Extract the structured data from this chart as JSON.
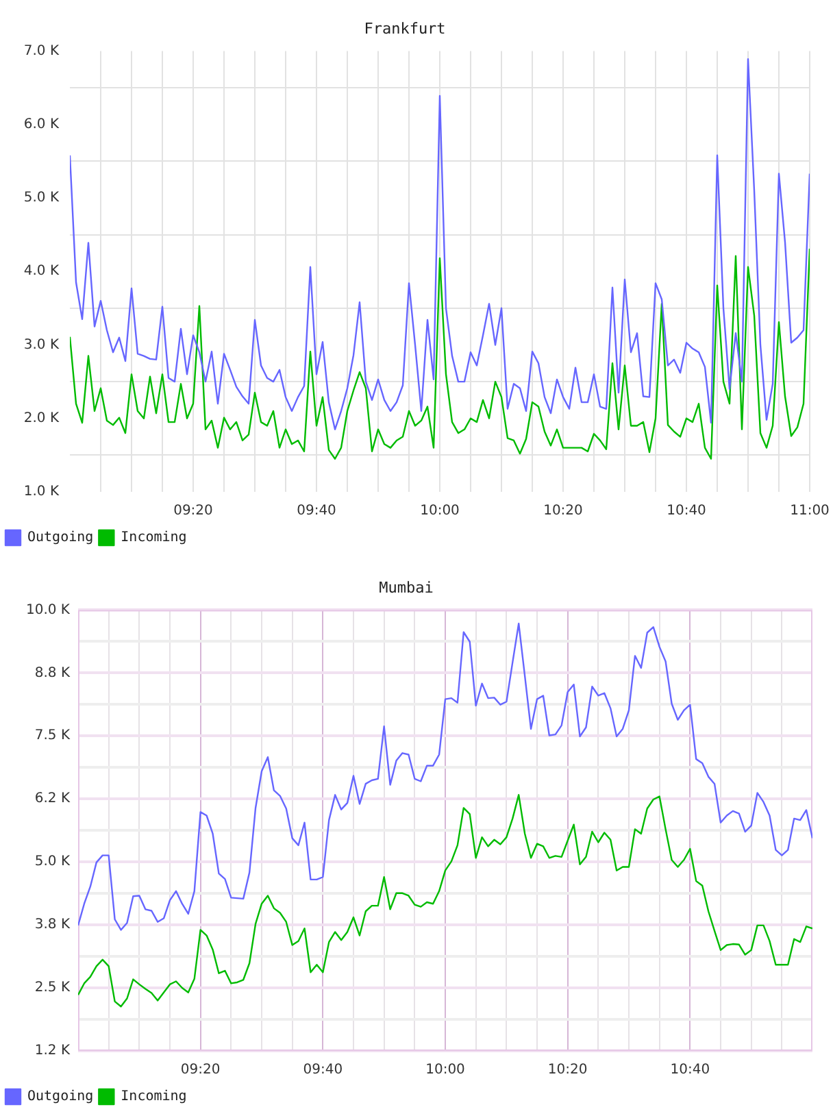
{
  "chart_data": [
    {
      "type": "line",
      "title": "Frankfurt",
      "x": [
        9,
        9.0167,
        9.0333,
        9.05,
        9.0667,
        9.0833,
        9.1,
        9.1167,
        9.1333,
        9.15,
        9.1667,
        9.1833,
        9.2,
        9.2167,
        9.2333,
        9.25,
        9.2667,
        9.2833,
        9.3,
        9.3167,
        9.3333,
        9.35,
        9.3667,
        9.3833,
        9.4,
        9.4167,
        9.4333,
        9.45,
        9.4667,
        9.4833,
        9.5,
        9.5167,
        9.5333,
        9.55,
        9.5667,
        9.5833,
        9.6,
        9.6167,
        9.6333,
        9.65,
        9.6667,
        9.6833,
        9.7,
        9.7167,
        9.7333,
        9.75,
        9.7667,
        9.7833,
        9.8,
        9.8167,
        9.8333,
        9.85,
        9.8667,
        9.8833,
        9.9,
        9.9167,
        9.9333,
        9.95,
        9.9667,
        9.9833,
        10,
        10.0167,
        10.0333,
        10.05,
        10.0667,
        10.0833,
        10.1,
        10.1167,
        10.1333,
        10.15,
        10.1667,
        10.1833,
        10.2,
        10.2167,
        10.2333,
        10.25,
        10.2667,
        10.2833,
        10.3,
        10.3167,
        10.3333,
        10.35,
        10.3667,
        10.3833,
        10.4,
        10.4167,
        10.4333,
        10.45,
        10.4667,
        10.4833,
        10.5,
        10.5167,
        10.5333,
        10.55,
        10.5667,
        10.5833,
        10.6,
        10.6167,
        10.6333,
        10.65,
        10.6667,
        10.6833,
        10.7,
        10.7167,
        10.7333,
        10.75,
        10.7667,
        10.7833,
        10.8,
        10.8167,
        10.8333,
        10.85,
        10.8667,
        10.8833,
        10.9,
        10.9167,
        10.9333,
        10.95,
        10.9667,
        10.9833,
        11
      ],
      "series": [
        {
          "name": "Outgoing",
          "color": "#6666ff",
          "values": [
            5580,
            3850,
            3350,
            4390,
            3250,
            3600,
            3200,
            2900,
            3100,
            2780,
            3770,
            2880,
            2850,
            2810,
            2800,
            3520,
            2550,
            2500,
            3220,
            2600,
            3130,
            2900,
            2500,
            2910,
            2200,
            2880,
            2660,
            2430,
            2300,
            2200,
            3340,
            2720,
            2550,
            2500,
            2660,
            2290,
            2100,
            2290,
            2440,
            4060,
            2600,
            3040,
            2220,
            1850,
            2100,
            2410,
            2860,
            3580,
            2500,
            2250,
            2530,
            2250,
            2100,
            2220,
            2450,
            3840,
            3000,
            2100,
            3340,
            2530,
            6390,
            3500,
            2850,
            2500,
            2500,
            2900,
            2720,
            3130,
            3560,
            3000,
            3500,
            2130,
            2470,
            2410,
            2100,
            2910,
            2750,
            2290,
            2070,
            2530,
            2290,
            2130,
            2690,
            2220,
            2220,
            2600,
            2160,
            2130,
            3780,
            2350,
            3890,
            2900,
            3160,
            2300,
            2290,
            3840,
            3620,
            2720,
            2800,
            2620,
            3030,
            2950,
            2900,
            2700,
            1940,
            5580,
            3500,
            2400,
            3160,
            2500,
            6890,
            5100,
            3000,
            1980,
            2470,
            5330,
            4400,
            3030,
            3100,
            3200,
            5330
          ]
        },
        {
          "name": "Incoming",
          "color": "#00bb00",
          "values": [
            3110,
            2200,
            1940,
            2850,
            2100,
            2410,
            1970,
            1910,
            2010,
            1800,
            2600,
            2100,
            2000,
            2570,
            2070,
            2600,
            1950,
            1950,
            2470,
            2000,
            2200,
            3530,
            1850,
            1970,
            1600,
            2010,
            1850,
            1950,
            1700,
            1780,
            2350,
            1950,
            1900,
            2100,
            1600,
            1850,
            1650,
            1700,
            1550,
            2910,
            1900,
            2290,
            1570,
            1450,
            1600,
            2100,
            2380,
            2630,
            2410,
            1550,
            1850,
            1650,
            1600,
            1700,
            1750,
            2100,
            1900,
            1970,
            2160,
            1600,
            4180,
            2600,
            1950,
            1800,
            1850,
            2000,
            1950,
            2250,
            2000,
            2500,
            2290,
            1730,
            1700,
            1520,
            1720,
            2220,
            2160,
            1820,
            1630,
            1850,
            1600,
            1600,
            1600,
            1600,
            1550,
            1790,
            1700,
            1580,
            2750,
            1850,
            2720,
            1900,
            1900,
            1950,
            1540,
            2000,
            3560,
            1910,
            1820,
            1750,
            2000,
            1950,
            2200,
            1600,
            1450,
            3810,
            2500,
            2200,
            4210,
            1850,
            4060,
            3400,
            1800,
            1600,
            1900,
            3310,
            2300,
            1760,
            1880,
            2200,
            4310
          ]
        }
      ],
      "xlim": [
        9,
        11
      ],
      "xticks": [
        {
          "value": 9.0833,
          "label": null
        },
        {
          "value": 9.1667,
          "label": null
        },
        {
          "value": 9.25,
          "label": null
        },
        {
          "value": 9.3333,
          "label": "09:20"
        },
        {
          "value": 9.4167,
          "label": null
        },
        {
          "value": 9.5,
          "label": null
        },
        {
          "value": 9.5833,
          "label": null
        },
        {
          "value": 9.6667,
          "label": "09:40"
        },
        {
          "value": 9.75,
          "label": null
        },
        {
          "value": 9.8333,
          "label": null
        },
        {
          "value": 9.9167,
          "label": null
        },
        {
          "value": 10,
          "label": "10:00"
        },
        {
          "value": 10.0833,
          "label": null
        },
        {
          "value": 10.1667,
          "label": null
        },
        {
          "value": 10.25,
          "label": null
        },
        {
          "value": 10.3333,
          "label": "10:20"
        },
        {
          "value": 10.4167,
          "label": null
        },
        {
          "value": 10.5,
          "label": null
        },
        {
          "value": 10.5833,
          "label": null
        },
        {
          "value": 10.6667,
          "label": "10:40"
        },
        {
          "value": 10.75,
          "label": null
        },
        {
          "value": 10.8333,
          "label": null
        },
        {
          "value": 10.9167,
          "label": null
        },
        {
          "value": 11,
          "label": "11:00"
        }
      ],
      "ylim": [
        1000,
        7000
      ],
      "yticks": [
        {
          "value": 1000,
          "label": "1.0 K"
        },
        {
          "value": 1500,
          "label": null
        },
        {
          "value": 2000,
          "label": "2.0 K"
        },
        {
          "value": 2500,
          "label": null
        },
        {
          "value": 3000,
          "label": "3.0 K"
        },
        {
          "value": 3500,
          "label": null
        },
        {
          "value": 4000,
          "label": "4.0 K"
        },
        {
          "value": 4500,
          "label": null
        },
        {
          "value": 5000,
          "label": "5.0 K"
        },
        {
          "value": 5500,
          "label": null
        },
        {
          "value": 6000,
          "label": "6.0 K"
        },
        {
          "value": 6500,
          "label": null
        },
        {
          "value": 7000,
          "label": "7.0 K"
        }
      ],
      "grid": true,
      "legend": "bottom left"
    },
    {
      "type": "line",
      "title": "Mumbai",
      "x": [
        9,
        9.0167,
        9.0333,
        9.05,
        9.0667,
        9.0833,
        9.1,
        9.1167,
        9.1333,
        9.15,
        9.1667,
        9.1833,
        9.2,
        9.2167,
        9.2333,
        9.25,
        9.2667,
        9.2833,
        9.3,
        9.3167,
        9.3333,
        9.35,
        9.3667,
        9.3833,
        9.4,
        9.4167,
        9.4333,
        9.45,
        9.4667,
        9.4833,
        9.5,
        9.5167,
        9.5333,
        9.55,
        9.5667,
        9.5833,
        9.6,
        9.6167,
        9.6333,
        9.65,
        9.6667,
        9.6833,
        9.7,
        9.7167,
        9.7333,
        9.75,
        9.7667,
        9.7833,
        9.8,
        9.8167,
        9.8333,
        9.85,
        9.8667,
        9.8833,
        9.9,
        9.9167,
        9.9333,
        9.95,
        9.9667,
        9.9833,
        10,
        10.0167,
        10.0333,
        10.05,
        10.0667,
        10.0833,
        10.1,
        10.1167,
        10.1333,
        10.15,
        10.1667,
        10.1833,
        10.2,
        10.2167,
        10.2333,
        10.25,
        10.2667,
        10.2833,
        10.3,
        10.3167,
        10.3333,
        10.35,
        10.3667,
        10.3833,
        10.4,
        10.4167,
        10.4333,
        10.45,
        10.4667,
        10.4833,
        10.5,
        10.5167,
        10.5333,
        10.55,
        10.5667,
        10.5833,
        10.6,
        10.6167,
        10.6333,
        10.65,
        10.6667,
        10.6833,
        10.7,
        10.7167,
        10.7333,
        10.75,
        10.7667,
        10.7833,
        10.8,
        10.8167,
        10.8333,
        10.85,
        10.8667,
        10.8833,
        10.9,
        10.9167,
        10.9333,
        10.95,
        10.9667,
        10.9833,
        11
      ],
      "series": [
        {
          "name": "Outgoing",
          "color": "#6666ff",
          "values": [
            3740,
            4170,
            4510,
            4990,
            5130,
            5130,
            3860,
            3650,
            3790,
            4320,
            4330,
            4060,
            4030,
            3810,
            3880,
            4240,
            4420,
            4170,
            3970,
            4420,
            5990,
            5920,
            5560,
            4770,
            4660,
            4290,
            4280,
            4270,
            4790,
            6070,
            6800,
            7080,
            6420,
            6310,
            6060,
            5470,
            5330,
            5780,
            4650,
            4650,
            4700,
            5830,
            6330,
            6040,
            6170,
            6710,
            6150,
            6550,
            6620,
            6650,
            7690,
            6530,
            7010,
            7160,
            7130,
            6650,
            6600,
            6910,
            6910,
            7130,
            8230,
            8250,
            8160,
            9560,
            9370,
            8100,
            8540,
            8250,
            8260,
            8120,
            8180,
            8960,
            9730,
            8690,
            7640,
            8230,
            8300,
            7510,
            7530,
            7710,
            8370,
            8520,
            7490,
            7670,
            8480,
            8300,
            8350,
            8050,
            7490,
            7640,
            8010,
            9090,
            8850,
            9550,
            9660,
            9270,
            8980,
            8140,
            7820,
            8010,
            8120,
            7040,
            6960,
            6690,
            6550,
            5780,
            5920,
            6010,
            5960,
            5600,
            5720,
            6370,
            6190,
            5920,
            5240,
            5130,
            5240,
            5860,
            5830,
            6030,
            5470
          ]
        },
        {
          "name": "Incoming",
          "color": "#00bb00",
          "values": [
            2360,
            2590,
            2720,
            2930,
            3060,
            2930,
            2230,
            2130,
            2290,
            2670,
            2570,
            2480,
            2400,
            2250,
            2410,
            2570,
            2630,
            2500,
            2410,
            2680,
            3650,
            3540,
            3260,
            2790,
            2840,
            2590,
            2610,
            2660,
            2990,
            3770,
            4170,
            4330,
            4080,
            3990,
            3810,
            3350,
            3430,
            3680,
            2810,
            2960,
            2810,
            3410,
            3610,
            3450,
            3610,
            3900,
            3540,
            4020,
            4130,
            4130,
            4700,
            4060,
            4380,
            4380,
            4330,
            4150,
            4110,
            4200,
            4170,
            4420,
            4830,
            5010,
            5330,
            6070,
            5950,
            5080,
            5490,
            5310,
            5440,
            5350,
            5490,
            5860,
            6330,
            5560,
            5080,
            5360,
            5310,
            5080,
            5120,
            5100,
            5420,
            5740,
            4950,
            5100,
            5600,
            5390,
            5580,
            5440,
            4830,
            4900,
            4900,
            5650,
            5560,
            6060,
            6240,
            6300,
            5650,
            5040,
            4900,
            5040,
            5260,
            4620,
            4530,
            4020,
            3630,
            3250,
            3350,
            3370,
            3360,
            3160,
            3250,
            3740,
            3740,
            3430,
            2960,
            2960,
            2960,
            3470,
            3410,
            3720,
            3680
          ]
        }
      ],
      "xlim": [
        9,
        11
      ],
      "xticks": [
        {
          "value": 9.0833,
          "label": null
        },
        {
          "value": 9.1667,
          "label": null
        },
        {
          "value": 9.25,
          "label": null
        },
        {
          "value": 9.3333,
          "label": "09:20"
        },
        {
          "value": 9.4167,
          "label": null
        },
        {
          "value": 9.5,
          "label": null
        },
        {
          "value": 9.5833,
          "label": null
        },
        {
          "value": 9.6667,
          "label": "09:40"
        },
        {
          "value": 9.75,
          "label": null
        },
        {
          "value": 9.8333,
          "label": null
        },
        {
          "value": 9.9167,
          "label": null
        },
        {
          "value": 10,
          "label": "10:00"
        },
        {
          "value": 10.0833,
          "label": null
        },
        {
          "value": 10.1667,
          "label": null
        },
        {
          "value": 10.25,
          "label": null
        },
        {
          "value": 10.3333,
          "label": "10:20"
        },
        {
          "value": 10.4167,
          "label": null
        },
        {
          "value": 10.5,
          "label": null
        },
        {
          "value": 10.5833,
          "label": null
        },
        {
          "value": 10.6667,
          "label": "10:40"
        },
        {
          "value": 10.75,
          "label": null
        },
        {
          "value": 10.8333,
          "label": null
        },
        {
          "value": 10.9167,
          "label": null
        }
      ],
      "ylim": [
        1250,
        10000
      ],
      "yticks": [
        {
          "value": 1250,
          "label": "1.2 K"
        },
        {
          "value": 1875,
          "label": null
        },
        {
          "value": 2500,
          "label": "2.5 K"
        },
        {
          "value": 3125,
          "label": null
        },
        {
          "value": 3750,
          "label": "3.8 K"
        },
        {
          "value": 4375,
          "label": null
        },
        {
          "value": 5000,
          "label": "5.0 K"
        },
        {
          "value": 5625,
          "label": null
        },
        {
          "value": 6250,
          "label": "6.2 K"
        },
        {
          "value": 6875,
          "label": null
        },
        {
          "value": 7500,
          "label": "7.5 K"
        },
        {
          "value": 8125,
          "label": null
        },
        {
          "value": 8750,
          "label": "8.8 K"
        },
        {
          "value": 9375,
          "label": null
        },
        {
          "value": 10000,
          "label": "10.0 K"
        }
      ],
      "grid": true,
      "legend": "bottom left"
    }
  ]
}
